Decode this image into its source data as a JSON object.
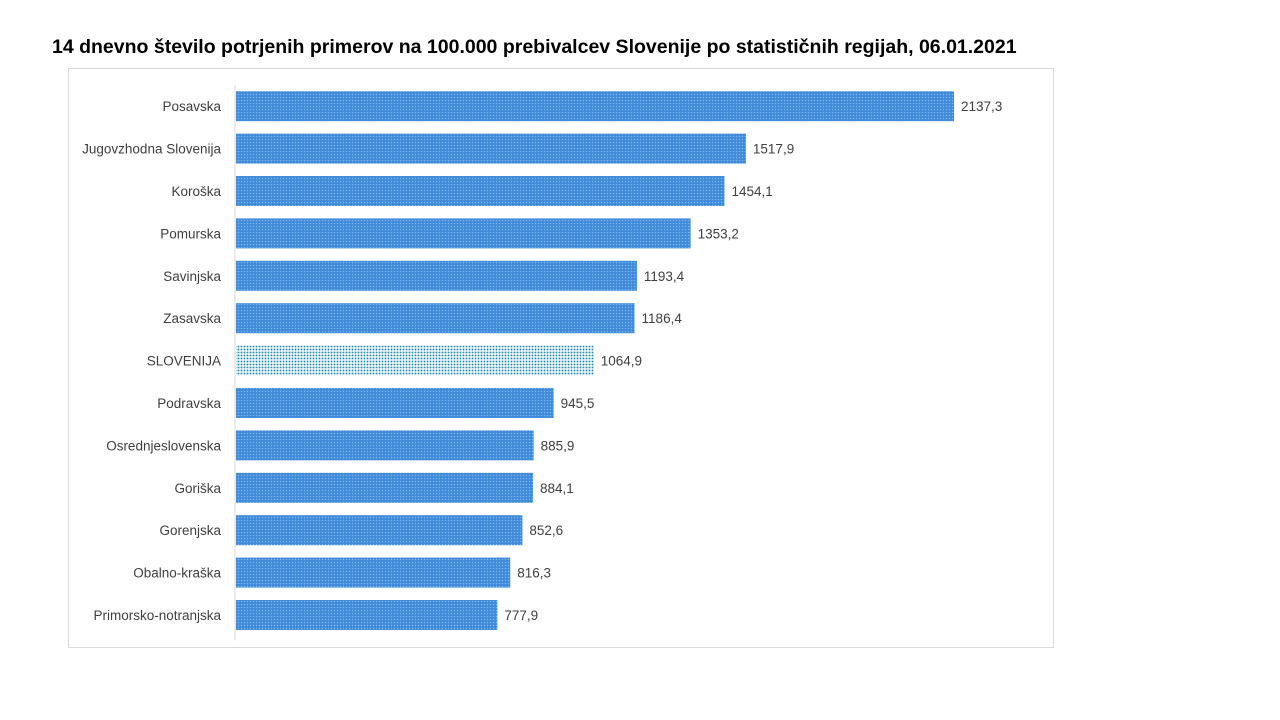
{
  "chart_data": {
    "type": "bar",
    "orientation": "horizontal",
    "title": "14 dnevno število potrjenih primerov na 100.000 prebivalcev Slovenije po statističnih regijah, 06.01.2021",
    "categories": [
      "Posavska",
      "Jugovzhodna Slovenija",
      "Koroška",
      "Pomurska",
      "Savinjska",
      "Zasavska",
      "SLOVENIJA",
      "Podravska",
      "Osrednjeslovenska",
      "Goriška",
      "Gorenjska",
      "Obalno-kraška",
      "Primorsko-notranjska"
    ],
    "values": [
      2137.3,
      1517.9,
      1454.1,
      1353.2,
      1193.4,
      1186.4,
      1064.9,
      945.5,
      885.9,
      884.1,
      852.6,
      816.3,
      777.9
    ],
    "value_labels": [
      "2137,3",
      "1517,9",
      "1454,1",
      "1353,2",
      "1193,4",
      "1186,4",
      "1064,9",
      "945,5",
      "885,9",
      "884,1",
      "852,6",
      "816,3",
      "777,9"
    ],
    "highlight_category": "SLOVENIJA",
    "xlim": [
      0,
      2350
    ],
    "grid": false,
    "legend": "none",
    "colors": {
      "bar": "#3f8ad8",
      "bar_dots": "#7fb8ee",
      "highlight_bar": "#eaf4f7",
      "highlight_dots": "#1f8aa6",
      "axis": "#d9d9d9"
    }
  }
}
